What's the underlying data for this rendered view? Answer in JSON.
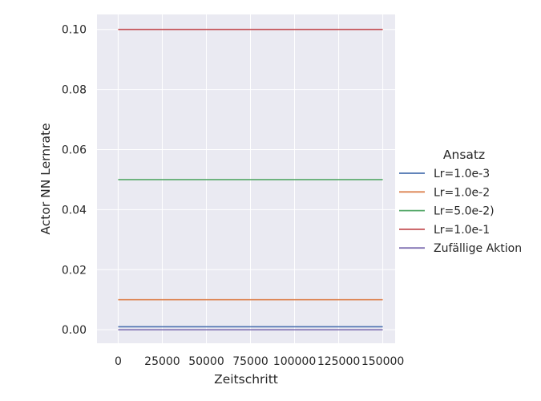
{
  "chart_data": {
    "type": "line",
    "xlabel": "Zeitschritt",
    "ylabel": "Actor NN Lernrate",
    "xlim": [
      -12000,
      157000
    ],
    "ylim": [
      -0.0045,
      0.105
    ],
    "xticks": [
      0,
      25000,
      50000,
      75000,
      100000,
      125000,
      150000
    ],
    "yticks": [
      0.0,
      0.02,
      0.04,
      0.06,
      0.08,
      0.1
    ],
    "xtick_labels": [
      "0",
      "25000",
      "50000",
      "75000",
      "100000",
      "125000",
      "150000"
    ],
    "ytick_labels": [
      "0.00",
      "0.02",
      "0.04",
      "0.06",
      "0.08",
      "0.10"
    ],
    "grid": true,
    "background": "#eaeaf2",
    "legend": {
      "title": "Ansatz",
      "placement": "right"
    },
    "series": [
      {
        "name": "Lr=1.0e-3",
        "color": "#4c72b0",
        "x": [
          0,
          150000
        ],
        "y": [
          0.001,
          0.001
        ]
      },
      {
        "name": "Lr=1.0e-2",
        "color": "#dd8452",
        "x": [
          0,
          150000
        ],
        "y": [
          0.01,
          0.01
        ]
      },
      {
        "name": "Lr=5.0e-2)",
        "color": "#55a868",
        "x": [
          0,
          150000
        ],
        "y": [
          0.05,
          0.05
        ]
      },
      {
        "name": "Lr=1.0e-1",
        "color": "#c44e52",
        "x": [
          0,
          150000
        ],
        "y": [
          0.1,
          0.1
        ]
      },
      {
        "name": "Zufällige Aktion",
        "color": "#8172b3",
        "x": [
          0,
          150000
        ],
        "y": [
          0.0,
          0.0
        ]
      }
    ]
  }
}
